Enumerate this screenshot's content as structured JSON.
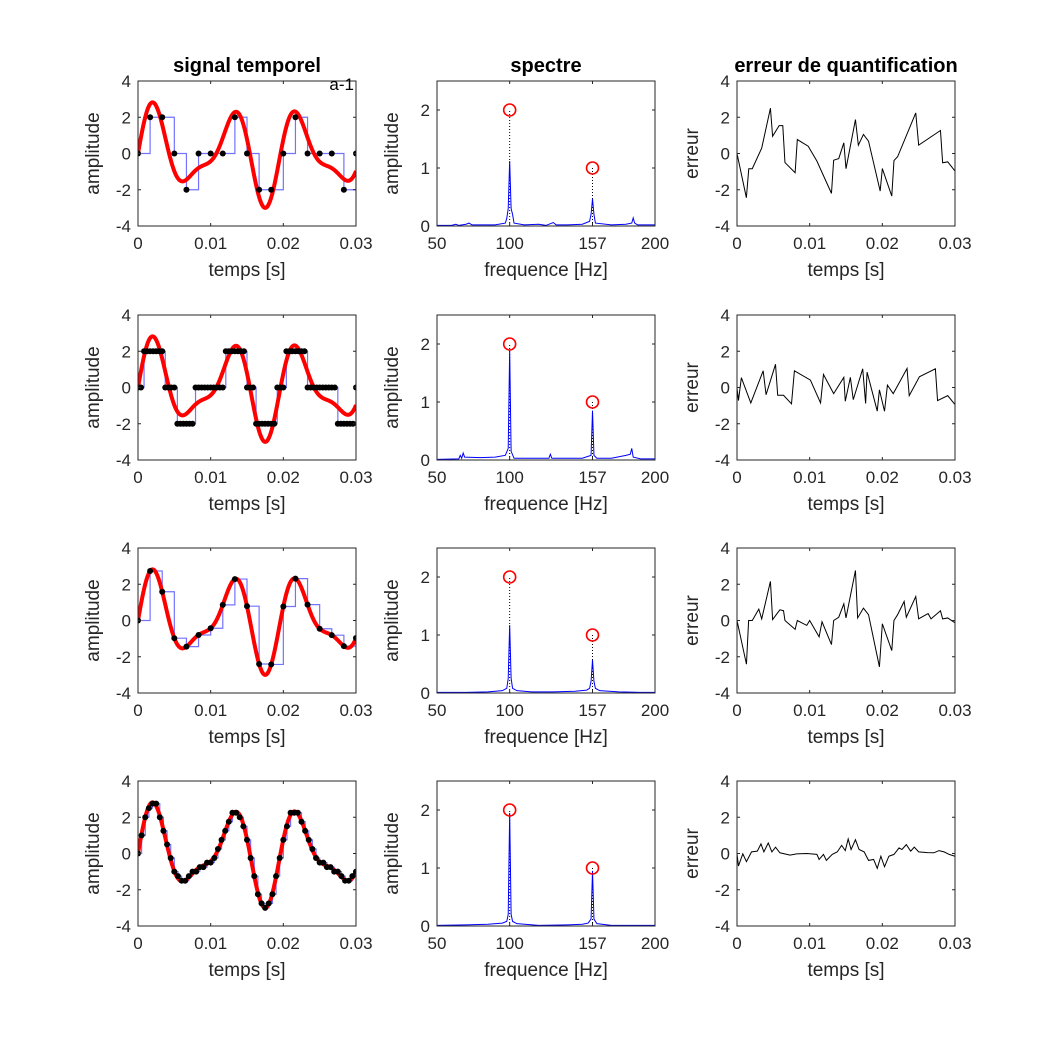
{
  "signal": {
    "components": [
      {
        "freq_hz": 100,
        "amplitude": 2
      },
      {
        "freq_hz": 157,
        "amplitude": 1
      }
    ]
  },
  "colors": {
    "reference_signal": "#ff0000",
    "staircase": "#0000ff",
    "samples": "#000000",
    "spectrum": "#0000ff",
    "reference_markers": "#ff0000",
    "error": "#000000"
  },
  "chart_data": [
    {
      "type": "line",
      "panel": "signal",
      "row": 1,
      "title": "signal temporel",
      "annotation": "a-1",
      "xlabel": "temps [s]",
      "ylabel": "amplitude",
      "xlim": [
        0,
        0.03
      ],
      "ylim": [
        -4,
        4
      ],
      "xticks": [
        "0",
        "0.01",
        "0.02",
        "0.03"
      ],
      "yticks": [
        "-4",
        "-2",
        "0",
        "2",
        "4"
      ]
    },
    {
      "type": "line",
      "panel": "spectrum",
      "row": 1,
      "title": "spectre",
      "xlabel": "frequence [Hz]",
      "ylabel": "amplitude",
      "xlim": [
        50,
        200
      ],
      "ylim": [
        0,
        2.5
      ],
      "xticks": [
        "50",
        "100",
        "157",
        "200"
      ],
      "yticks": [
        "0",
        "1",
        "2"
      ],
      "markers": [
        {
          "x": 100,
          "y": 2
        },
        {
          "x": 157,
          "y": 1
        }
      ],
      "x": [
        50,
        60,
        63,
        65,
        70,
        72,
        74,
        90,
        97,
        98,
        99,
        100,
        101,
        102,
        103,
        110,
        120,
        125,
        130,
        132,
        140,
        150,
        155,
        156,
        157,
        158,
        159,
        170,
        180,
        184,
        185,
        186,
        188,
        200
      ],
      "y": [
        0.01,
        0.01,
        0.03,
        0.01,
        0.03,
        0.05,
        0.02,
        0.02,
        0.05,
        0.13,
        0.3,
        1.12,
        0.3,
        0.2,
        0.05,
        0.02,
        0.03,
        0.01,
        0.06,
        0.02,
        0.02,
        0.03,
        0.08,
        0.2,
        0.47,
        0.2,
        0.05,
        0.02,
        0.03,
        0.05,
        0.14,
        0.05,
        0.02,
        0.02
      ]
    },
    {
      "type": "line",
      "panel": "error",
      "row": 1,
      "title": "erreur de quantification",
      "xlabel": "temps [s]",
      "ylabel": "erreur",
      "xlim": [
        0,
        0.03
      ],
      "ylim": [
        -4,
        4
      ],
      "xticks": [
        "0",
        "0.01",
        "0.02",
        "0.03"
      ],
      "yticks": [
        "-4",
        "-2",
        "0",
        "2",
        "4"
      ],
      "x": [
        0,
        0.00129,
        0.00162,
        0.0021,
        0.0034,
        0.0046,
        0.0049,
        0.0058,
        0.0063,
        0.0066,
        0.008,
        0.0083,
        0.0098,
        0.011,
        0.013,
        0.0133,
        0.014,
        0.0147,
        0.015,
        0.0163,
        0.0167,
        0.0174,
        0.0181,
        0.0197,
        0.02,
        0.0213,
        0.0216,
        0.0221,
        0.0246,
        0.025,
        0.028,
        0.0283,
        0.029,
        0.03
      ],
      "y": [
        0,
        -2.44,
        -0.84,
        -0.84,
        0.3,
        2.5,
        0.95,
        1.54,
        1.54,
        -0.5,
        -1.06,
        0.77,
        0.4,
        -0.42,
        -2.2,
        -0.37,
        -0.28,
        0.59,
        -0.84,
        1.87,
        0.46,
        1.05,
        0.68,
        -2.07,
        -0.83,
        -2.35,
        -0.39,
        -0.18,
        2.24,
        0.46,
        1.27,
        -0.51,
        -0.46,
        -0.97
      ]
    },
    {
      "type": "line",
      "panel": "signal",
      "row": 2,
      "xlabel": "temps [s]",
      "ylabel": "amplitude",
      "xlim": [
        0,
        0.03
      ],
      "ylim": [
        -4,
        4
      ],
      "xticks": [
        "0",
        "0.01",
        "0.02",
        "0.03"
      ],
      "yticks": [
        "-4",
        "-2",
        "0",
        "2",
        "4"
      ]
    },
    {
      "type": "line",
      "panel": "spectrum",
      "row": 2,
      "xlabel": "frequence [Hz]",
      "ylabel": "amplitude",
      "xlim": [
        50,
        200
      ],
      "ylim": [
        0,
        2.5
      ],
      "xticks": [
        "50",
        "100",
        "157",
        "200"
      ],
      "yticks": [
        "0",
        "1",
        "2"
      ],
      "markers": [
        {
          "x": 100,
          "y": 2
        },
        {
          "x": 157,
          "y": 1
        }
      ],
      "x": [
        50,
        65,
        66,
        67,
        68,
        69,
        80,
        90,
        97,
        99,
        100,
        101,
        103,
        120,
        127,
        128,
        129,
        150,
        156,
        157,
        158,
        160,
        170,
        180,
        183,
        184,
        185,
        190,
        200
      ],
      "y": [
        0.01,
        0.02,
        0.08,
        0.03,
        0.12,
        0.05,
        0.04,
        0.05,
        0.08,
        0.2,
        1.9,
        0.15,
        0.03,
        0.03,
        0.03,
        0.1,
        0.03,
        0.03,
        0.08,
        0.85,
        0.08,
        0.03,
        0.03,
        0.08,
        0.1,
        0.2,
        0.05,
        0.02,
        0.02
      ]
    },
    {
      "type": "line",
      "panel": "error",
      "row": 2,
      "xlabel": "temps [s]",
      "ylabel": "erreur",
      "xlim": [
        0,
        0.03
      ],
      "ylim": [
        -4,
        4
      ],
      "xticks": [
        "0",
        "0.01",
        "0.02",
        "0.03"
      ],
      "yticks": [
        "-4",
        "-2",
        "0",
        "2",
        "4"
      ],
      "x": [
        0,
        0.0002,
        0.0006,
        0.0019,
        0.0036,
        0.004,
        0.0053,
        0.0056,
        0.0064,
        0.0075,
        0.0079,
        0.0101,
        0.0115,
        0.0119,
        0.0133,
        0.0147,
        0.0149,
        0.0156,
        0.016,
        0.0173,
        0.0177,
        0.0179,
        0.0193,
        0.0196,
        0.0203,
        0.0207,
        0.0215,
        0.0234,
        0.0237,
        0.0251,
        0.0273,
        0.0276,
        0.029,
        0.03
      ],
      "y": [
        0,
        -0.72,
        0.54,
        -0.85,
        0.92,
        -0.4,
        1.28,
        -0.43,
        -0.43,
        -0.9,
        0.92,
        0.41,
        -0.85,
        0.72,
        -0.34,
        0.56,
        -0.76,
        0.56,
        -0.67,
        1.03,
        -0.88,
        0.85,
        -1.3,
        -0.13,
        -1.31,
        0.13,
        -0.34,
        1.05,
        -0.45,
        0.59,
        1.03,
        -0.72,
        -0.45,
        -0.94
      ]
    },
    {
      "type": "line",
      "panel": "signal",
      "row": 3,
      "xlabel": "temps [s]",
      "ylabel": "amplitude",
      "xlim": [
        0,
        0.03
      ],
      "ylim": [
        -4,
        4
      ],
      "xticks": [
        "0",
        "0.01",
        "0.02",
        "0.03"
      ],
      "yticks": [
        "-4",
        "-2",
        "0",
        "2",
        "4"
      ]
    },
    {
      "type": "line",
      "panel": "spectrum",
      "row": 3,
      "xlabel": "frequence [Hz]",
      "ylabel": "amplitude",
      "xlim": [
        50,
        200
      ],
      "ylim": [
        0,
        2.5
      ],
      "xticks": [
        "50",
        "100",
        "157",
        "200"
      ],
      "yticks": [
        "0",
        "1",
        "2"
      ],
      "markers": [
        {
          "x": 100,
          "y": 2
        },
        {
          "x": 157,
          "y": 1
        }
      ],
      "x": [
        50,
        70,
        85,
        95,
        98,
        99,
        100,
        101,
        102,
        105,
        115,
        130,
        145,
        153,
        155,
        156,
        157,
        158,
        159,
        162,
        175,
        190,
        200
      ],
      "y": [
        0.01,
        0.01,
        0.02,
        0.04,
        0.08,
        0.25,
        1.17,
        0.25,
        0.08,
        0.04,
        0.02,
        0.02,
        0.03,
        0.05,
        0.08,
        0.2,
        0.57,
        0.2,
        0.08,
        0.04,
        0.02,
        0.01,
        0.01
      ]
    },
    {
      "type": "line",
      "panel": "error",
      "row": 3,
      "xlabel": "temps [s]",
      "ylabel": "erreur",
      "xlim": [
        0,
        0.03
      ],
      "ylim": [
        -4,
        4
      ],
      "xticks": [
        "0",
        "0.01",
        "0.02",
        "0.03"
      ],
      "yticks": [
        "-4",
        "-2",
        "0",
        "2",
        "4"
      ],
      "x": [
        0,
        0.0013,
        0.0016,
        0.0021,
        0.003,
        0.0034,
        0.0046,
        0.0049,
        0.0059,
        0.0064,
        0.0066,
        0.008,
        0.0083,
        0.0096,
        0.01,
        0.0113,
        0.0117,
        0.013,
        0.0133,
        0.014,
        0.0147,
        0.015,
        0.0163,
        0.0166,
        0.0174,
        0.0181,
        0.0196,
        0.02,
        0.0213,
        0.0216,
        0.0221,
        0.023,
        0.0233,
        0.0246,
        0.025,
        0.0263,
        0.0267,
        0.028,
        0.0283,
        0.029,
        0.03
      ],
      "y": [
        0,
        -2.41,
        0,
        0,
        0.63,
        0.09,
        2.16,
        0.05,
        0.59,
        0.54,
        0,
        -0.49,
        0,
        -0.27,
        0,
        -0.9,
        -0.07,
        -1.33,
        0,
        0.18,
        0.92,
        0.14,
        2.76,
        0.14,
        0.68,
        0.32,
        -2.56,
        -0.18,
        -1.66,
        0,
        0.32,
        1.05,
        0.18,
        1.32,
        0.09,
        0.38,
        0.09,
        0.54,
        0.09,
        0.14,
        -0.13
      ]
    },
    {
      "type": "line",
      "panel": "signal",
      "row": 4,
      "xlabel": "temps [s]",
      "ylabel": "amplitude",
      "xlim": [
        0,
        0.03
      ],
      "ylim": [
        -4,
        4
      ],
      "xticks": [
        "0",
        "0.01",
        "0.02",
        "0.03"
      ],
      "yticks": [
        "-4",
        "-2",
        "0",
        "2",
        "4"
      ]
    },
    {
      "type": "line",
      "panel": "spectrum",
      "row": 4,
      "xlabel": "frequence [Hz]",
      "ylabel": "amplitude",
      "xlim": [
        50,
        200
      ],
      "ylim": [
        0,
        2.5
      ],
      "xticks": [
        "50",
        "100",
        "157",
        "200"
      ],
      "yticks": [
        "0",
        "1",
        "2"
      ],
      "markers": [
        {
          "x": 100,
          "y": 2
        },
        {
          "x": 157,
          "y": 1
        }
      ],
      "x": [
        50,
        70,
        85,
        95,
        98,
        99,
        100,
        101,
        102,
        105,
        120,
        140,
        150,
        154,
        156,
        157,
        158,
        160,
        170,
        190,
        200
      ],
      "y": [
        0.01,
        0.02,
        0.03,
        0.05,
        0.08,
        0.2,
        1.95,
        0.2,
        0.08,
        0.04,
        0.01,
        0.02,
        0.03,
        0.05,
        0.12,
        0.95,
        0.12,
        0.04,
        0.01,
        0.01,
        0.01
      ]
    },
    {
      "type": "line",
      "panel": "error",
      "row": 4,
      "xlabel": "temps [s]",
      "ylabel": "erreur",
      "xlim": [
        0,
        0.03
      ],
      "ylim": [
        -4,
        4
      ],
      "xticks": [
        "0",
        "0.01",
        "0.02",
        "0.03"
      ],
      "yticks": [
        "-4",
        "-2",
        "0",
        "2",
        "4"
      ],
      "x": [
        0,
        0.0002,
        0.0008,
        0.0013,
        0.002,
        0.0028,
        0.0033,
        0.0037,
        0.0043,
        0.0048,
        0.0053,
        0.0059,
        0.0073,
        0.0082,
        0.0096,
        0.011,
        0.0113,
        0.0119,
        0.0123,
        0.0131,
        0.0138,
        0.0144,
        0.0149,
        0.0153,
        0.0157,
        0.0163,
        0.0168,
        0.0175,
        0.0181,
        0.0188,
        0.0193,
        0.0198,
        0.0203,
        0.0209,
        0.0216,
        0.0223,
        0.0227,
        0.0233,
        0.0239,
        0.0244,
        0.025,
        0.0262,
        0.0271,
        0.0278,
        0.0285,
        0.0292,
        0.03
      ],
      "y": [
        0,
        -0.69,
        -0.02,
        -0.45,
        0.09,
        0.13,
        0.53,
        0.09,
        0.58,
        0.09,
        0.35,
        0.04,
        -0.09,
        -0.02,
        0,
        -0.05,
        -0.33,
        -0.05,
        -0.38,
        -0.05,
        0.09,
        0.45,
        0.16,
        0.8,
        0.22,
        0.76,
        0.22,
        0.09,
        -0.38,
        -0.33,
        -0.82,
        -0.15,
        -0.73,
        -0.15,
        -0.05,
        0.31,
        0.22,
        0.49,
        0.13,
        0.35,
        0.09,
        0.05,
        0.04,
        0.16,
        0.09,
        -0.05,
        -0.15
      ]
    }
  ]
}
